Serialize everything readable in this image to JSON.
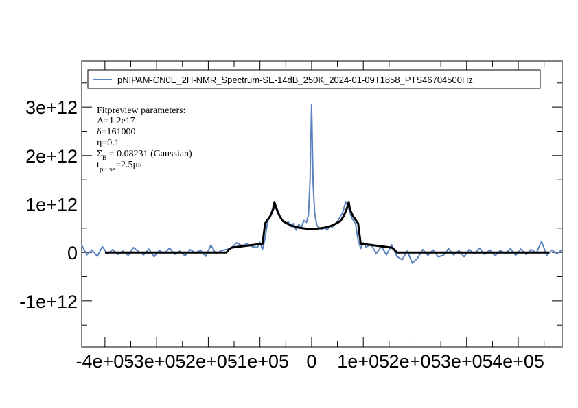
{
  "chart_data": {
    "type": "line",
    "title": "",
    "xlabel": "",
    "ylabel": "",
    "xlim": [
      -445000,
      485000
    ],
    "ylim": [
      -1950000000000,
      3950000000000
    ],
    "x_ticks": [
      {
        "value": -400000,
        "label": "-4e+05"
      },
      {
        "value": -300000,
        "label": "-3e+05"
      },
      {
        "value": -200000,
        "label": "-2e+05"
      },
      {
        "value": -100000,
        "label": "-1e+05"
      },
      {
        "value": 0,
        "label": "0"
      },
      {
        "value": 100000,
        "label": "1e+05"
      },
      {
        "value": 200000,
        "label": "2e+05"
      },
      {
        "value": 300000,
        "label": "3e+05"
      },
      {
        "value": 400000,
        "label": "4e+05"
      }
    ],
    "y_ticks": [
      {
        "value": -1000000000000,
        "label": "-1e+12"
      },
      {
        "value": 0,
        "label": "0"
      },
      {
        "value": 1000000000000,
        "label": "1e+12"
      },
      {
        "value": 2000000000000,
        "label": "2e+12"
      },
      {
        "value": 3000000000000,
        "label": "3e+12"
      }
    ],
    "grid": false,
    "legend_position": "top",
    "series": [
      {
        "name": "pNIPAM-CN0E_2H-NMR_Spectrum-SE-14dB_250K_2024-01-09T1858_PTS46704500Hz",
        "color": "#5a82be",
        "points": [
          [
            -445000,
            150000000000
          ],
          [
            -435000,
            -50000000000
          ],
          [
            -425000,
            50000000000
          ],
          [
            -415000,
            -80000000000
          ],
          [
            -405000,
            120000000000
          ],
          [
            -395000,
            -30000000000
          ],
          [
            -385000,
            60000000000
          ],
          [
            -375000,
            -40000000000
          ],
          [
            -365000,
            30000000000
          ],
          [
            -355000,
            -60000000000
          ],
          [
            -345000,
            100000000000
          ],
          [
            -335000,
            20000000000
          ],
          [
            -325000,
            -50000000000
          ],
          [
            -315000,
            70000000000
          ],
          [
            -305000,
            -90000000000
          ],
          [
            -295000,
            40000000000
          ],
          [
            -285000,
            -20000000000
          ],
          [
            -275000,
            90000000000
          ],
          [
            -265000,
            -40000000000
          ],
          [
            -255000,
            30000000000
          ],
          [
            -245000,
            -70000000000
          ],
          [
            -235000,
            60000000000
          ],
          [
            -225000,
            -10000000000
          ],
          [
            -215000,
            50000000000
          ],
          [
            -205000,
            -80000000000
          ],
          [
            -195000,
            150000000000
          ],
          [
            -185000,
            -30000000000
          ],
          [
            -175000,
            40000000000
          ],
          [
            -165000,
            60000000000
          ],
          [
            -155000,
            100000000000
          ],
          [
            -145000,
            200000000000
          ],
          [
            -135000,
            140000000000
          ],
          [
            -125000,
            180000000000
          ],
          [
            -115000,
            120000000000
          ],
          [
            -105000,
            100000000000
          ],
          [
            -100000,
            210000000000
          ],
          [
            -95000,
            60000000000
          ],
          [
            -90000,
            300000000000
          ],
          [
            -85000,
            650000000000
          ],
          [
            -78000,
            820000000000
          ],
          [
            -72000,
            1050000000000
          ],
          [
            -66000,
            880000000000
          ],
          [
            -60000,
            720000000000
          ],
          [
            -55000,
            650000000000
          ],
          [
            -50000,
            600000000000
          ],
          [
            -45000,
            630000000000
          ],
          [
            -40000,
            530000000000
          ],
          [
            -35000,
            600000000000
          ],
          [
            -30000,
            460000000000
          ],
          [
            -25000,
            580000000000
          ],
          [
            -20000,
            510000000000
          ],
          [
            -15000,
            660000000000
          ],
          [
            -10000,
            620000000000
          ],
          [
            -6000,
            780000000000
          ],
          [
            -3000,
            1500000000000
          ],
          [
            -1500,
            2300000000000
          ],
          [
            0,
            3050000000000
          ],
          [
            1500,
            2200000000000
          ],
          [
            3000,
            1400000000000
          ],
          [
            6000,
            800000000000
          ],
          [
            10000,
            560000000000
          ],
          [
            15000,
            500000000000
          ],
          [
            20000,
            480000000000
          ],
          [
            25000,
            520000000000
          ],
          [
            30000,
            460000000000
          ],
          [
            35000,
            550000000000
          ],
          [
            40000,
            520000000000
          ],
          [
            45000,
            580000000000
          ],
          [
            50000,
            640000000000
          ],
          [
            55000,
            730000000000
          ],
          [
            60000,
            820000000000
          ],
          [
            66000,
            1050000000000
          ],
          [
            72000,
            900000000000
          ],
          [
            78000,
            700000000000
          ],
          [
            85000,
            600000000000
          ],
          [
            90000,
            250000000000
          ],
          [
            95000,
            80000000000
          ],
          [
            100000,
            200000000000
          ],
          [
            105000,
            110000000000
          ],
          [
            115000,
            170000000000
          ],
          [
            125000,
            -20000000000
          ],
          [
            135000,
            120000000000
          ],
          [
            145000,
            -50000000000
          ],
          [
            155000,
            160000000000
          ],
          [
            165000,
            -80000000000
          ],
          [
            175000,
            -150000000000
          ],
          [
            185000,
            30000000000
          ],
          [
            195000,
            -220000000000
          ],
          [
            205000,
            -120000000000
          ],
          [
            215000,
            60000000000
          ],
          [
            225000,
            -60000000000
          ],
          [
            235000,
            50000000000
          ],
          [
            245000,
            -90000000000
          ],
          [
            255000,
            -60000000000
          ],
          [
            265000,
            80000000000
          ],
          [
            275000,
            -50000000000
          ],
          [
            285000,
            40000000000
          ],
          [
            295000,
            -90000000000
          ],
          [
            305000,
            60000000000
          ],
          [
            315000,
            -30000000000
          ],
          [
            325000,
            90000000000
          ],
          [
            335000,
            -40000000000
          ],
          [
            345000,
            50000000000
          ],
          [
            355000,
            -70000000000
          ],
          [
            365000,
            40000000000
          ],
          [
            375000,
            -20000000000
          ],
          [
            385000,
            80000000000
          ],
          [
            395000,
            -60000000000
          ],
          [
            405000,
            70000000000
          ],
          [
            415000,
            -40000000000
          ],
          [
            425000,
            60000000000
          ],
          [
            435000,
            -10000000000
          ],
          [
            445000,
            230000000000
          ],
          [
            455000,
            -60000000000
          ],
          [
            465000,
            50000000000
          ],
          [
            475000,
            -30000000000
          ],
          [
            485000,
            60000000000
          ]
        ]
      },
      {
        "name": "",
        "color": "#000000",
        "points": [
          [
            -400000,
            0
          ],
          [
            -250000,
            0
          ],
          [
            -165000,
            0
          ],
          [
            -160000,
            60000000000
          ],
          [
            -155000,
            100000000000
          ],
          [
            -110000,
            160000000000
          ],
          [
            -95000,
            180000000000
          ],
          [
            -90000,
            600000000000
          ],
          [
            -80000,
            750000000000
          ],
          [
            -74000,
            900000000000
          ],
          [
            -72000,
            1040000000000
          ],
          [
            -68000,
            900000000000
          ],
          [
            -62000,
            750000000000
          ],
          [
            -56000,
            650000000000
          ],
          [
            -48000,
            600000000000
          ],
          [
            -38000,
            550000000000
          ],
          [
            -25000,
            510000000000
          ],
          [
            -10000,
            490000000000
          ],
          [
            0,
            480000000000
          ],
          [
            10000,
            490000000000
          ],
          [
            25000,
            510000000000
          ],
          [
            38000,
            550000000000
          ],
          [
            48000,
            600000000000
          ],
          [
            56000,
            650000000000
          ],
          [
            62000,
            750000000000
          ],
          [
            68000,
            900000000000
          ],
          [
            72000,
            1040000000000
          ],
          [
            74000,
            900000000000
          ],
          [
            80000,
            750000000000
          ],
          [
            90000,
            600000000000
          ],
          [
            95000,
            180000000000
          ],
          [
            110000,
            160000000000
          ],
          [
            155000,
            100000000000
          ],
          [
            160000,
            60000000000
          ],
          [
            165000,
            0
          ],
          [
            250000,
            0
          ],
          [
            400000,
            0
          ],
          [
            460000,
            0
          ]
        ]
      }
    ]
  },
  "legend": {
    "label": "pNIPAM-CN0E_2H-NMR_Spectrum-SE-14dB_250K_2024-01-09T1858_PTS46704500Hz"
  },
  "fit_text": {
    "header": "Fitpreview parameters:",
    "a_line": "A=1.2e17",
    "delta_line": "δ=161000",
    "eta_line": "η=0.1",
    "sigma_symbol": "Σ",
    "sigma_sub": "B",
    "sigma_rest": " = 0.08231 (Gaussian)",
    "t_symbol": "t",
    "t_sub": "pulse",
    "t_rest": "=2.5μs"
  }
}
